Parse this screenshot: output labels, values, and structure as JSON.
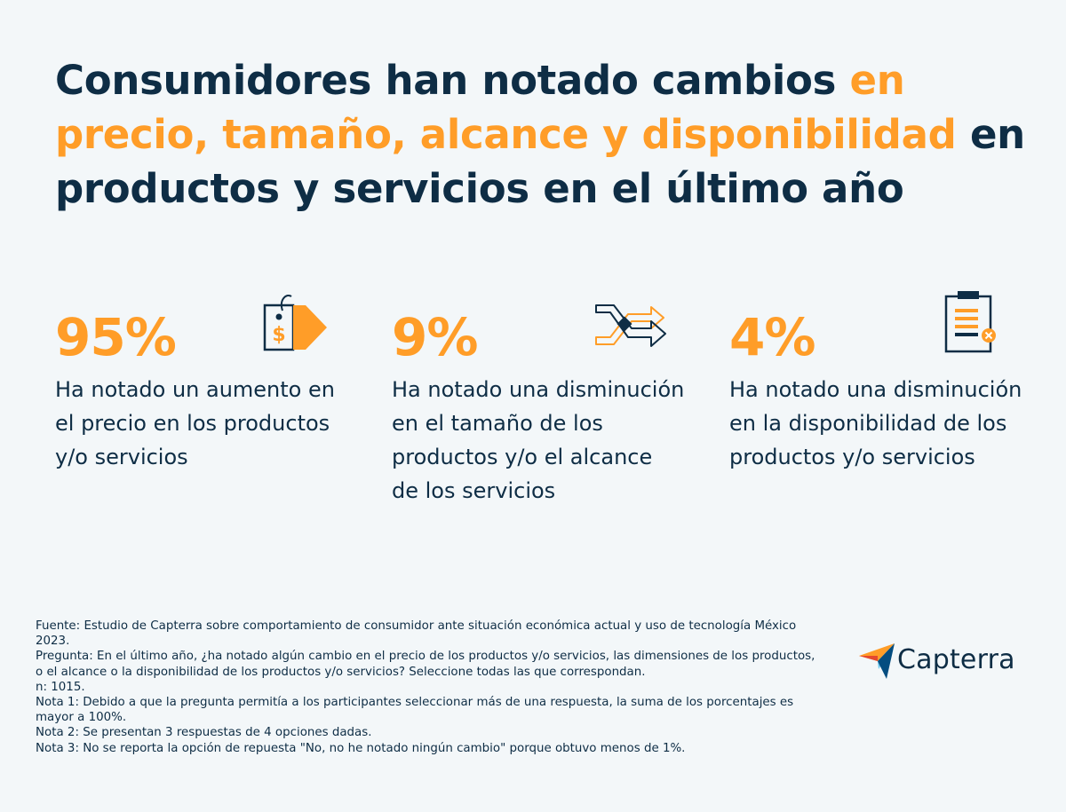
{
  "title": {
    "part1": "Consumidores han notado cambios ",
    "accent": "en precio, tamaño, alcance y disponibilidad",
    "part2": " en productos y servicios en el último año"
  },
  "stats": [
    {
      "percent": "95%",
      "description": "Ha notado un aumento en el precio en los productos y/o servicios",
      "icon": "price-tag-icon"
    },
    {
      "percent": "9%",
      "description": "Ha notado una disminución en el tamaño de los productos y/o el alcance de los servicios",
      "icon": "shuffle-arrows-icon"
    },
    {
      "percent": "4%",
      "description": "Ha notado una disminución en la disponibilidad de los productos y/o servicios",
      "icon": "clipboard-x-icon"
    }
  ],
  "footnotes": [
    "Fuente: Estudio de Capterra sobre comportamiento de consumidor ante situación económica actual y uso de tecnología México 2023.",
    "Pregunta: En el último año, ¿ha notado algún cambio en el precio de los productos y/o servicios, las dimensiones de los productos, o el alcance o la disponibilidad de los productos y/o servicios? Seleccione todas las que correspondan.",
    "n: 1015.",
    "Nota 1: Debido a que la pregunta permitía a los participantes seleccionar más de una respuesta, la suma de los porcentajes es mayor a 100%.",
    "Nota 2: Se presentan 3 respuestas de 4 opciones dadas.",
    "Nota 3: No se reporta la opción de repuesta \"No, no he notado ningún cambio\" porque obtuvo menos de 1%."
  ],
  "brand": {
    "name": "Capterra"
  },
  "colors": {
    "accent": "#ff9d28",
    "navy": "#0e2d45",
    "background": "#f3f7f9"
  }
}
